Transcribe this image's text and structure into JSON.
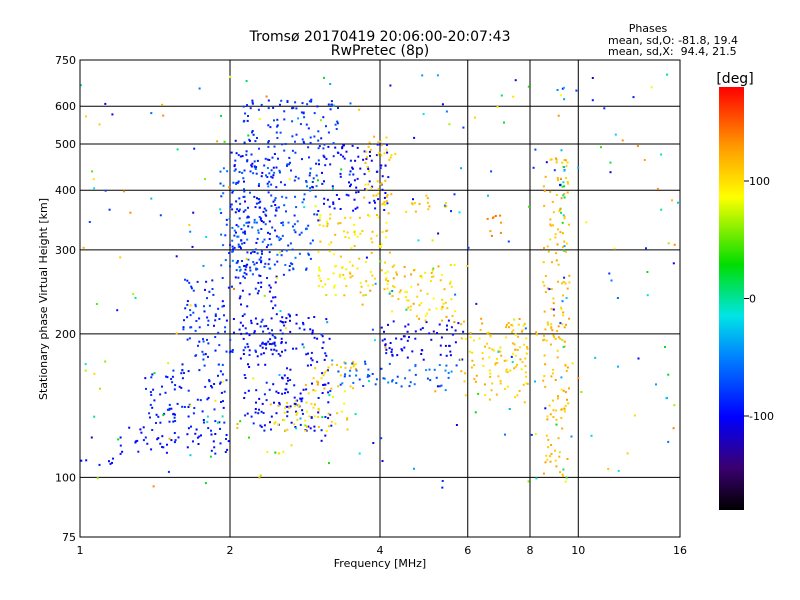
{
  "chart_data": {
    "type": "scatter",
    "title": "Tromsø 20170419 20:06:00-20:07:43",
    "subtitle": "RwPretec (8p)",
    "xlabel": "Frequency [MHz]",
    "ylabel": "Stationary phase Virtual Height [km]",
    "x_scale": "log",
    "y_scale": "log",
    "xlim": [
      1,
      16
    ],
    "ylim": [
      75,
      750
    ],
    "x_ticks": [
      1,
      2,
      4,
      6,
      8,
      10,
      16
    ],
    "y_ticks": [
      75,
      100,
      200,
      300,
      400,
      500,
      600,
      750
    ],
    "grid": true,
    "color_scale": {
      "label": "[deg]",
      "ticks": [
        100,
        0,
        -100
      ],
      "range": [
        -180,
        180
      ],
      "colormap": "rainbow"
    },
    "phases_box": {
      "heading": "Phases",
      "line_o": "mean, sd,O: -81.8, 19.4",
      "line_x": "mean, sd,X:  94.4, 21.5"
    },
    "clusters": [
      {
        "x": [
          1.0,
          1.2
        ],
        "y": [
          106,
          111
        ],
        "phase": [
          -100,
          -90
        ]
      },
      {
        "x": [
          1.2,
          2.0
        ],
        "y": [
          112,
          128
        ],
        "phase": [
          -105,
          -85
        ]
      },
      {
        "x": [
          1.35,
          2.0
        ],
        "y": [
          130,
          170
        ],
        "phase": [
          -100,
          -80
        ]
      },
      {
        "x": [
          1.6,
          2.0
        ],
        "y": [
          170,
          260
        ],
        "phase": [
          -100,
          -70
        ]
      },
      {
        "x": [
          1.9,
          3.0
        ],
        "y": [
          260,
          450
        ],
        "phase": [
          -90,
          -50
        ]
      },
      {
        "x": [
          2.1,
          3.3
        ],
        "y": [
          450,
          620
        ],
        "phase": [
          -95,
          -70
        ]
      },
      {
        "x": [
          2.0,
          2.5
        ],
        "y": [
          180,
          480
        ],
        "phase": [
          -110,
          -80
        ]
      },
      {
        "x": [
          2.1,
          3.2
        ],
        "y": [
          125,
          220
        ],
        "phase": [
          -110,
          -85
        ]
      },
      {
        "x": [
          2.35,
          2.6
        ],
        "y": [
          112,
          118
        ],
        "phase": [
          90,
          115
        ]
      },
      {
        "x": [
          2.4,
          3.5
        ],
        "y": [
          125,
          145
        ],
        "phase": [
          80,
          120
        ]
      },
      {
        "x": [
          2.8,
          3.6
        ],
        "y": [
          150,
          175
        ],
        "phase": [
          90,
          130
        ]
      },
      {
        "x": [
          3.0,
          4.2
        ],
        "y": [
          240,
          360
        ],
        "phase": [
          80,
          120
        ]
      },
      {
        "x": [
          3.0,
          4.2
        ],
        "y": [
          360,
          500
        ],
        "phase": [
          -110,
          -90
        ]
      },
      {
        "x": [
          3.7,
          4.3
        ],
        "y": [
          370,
          520
        ],
        "phase": [
          95,
          120
        ]
      },
      {
        "x": [
          3.3,
          5.8
        ],
        "y": [
          155,
          175
        ],
        "phase": [
          -80,
          -40
        ]
      },
      {
        "x": [
          4.0,
          5.9
        ],
        "y": [
          175,
          215
        ],
        "phase": [
          -115,
          -90
        ]
      },
      {
        "x": [
          4.2,
          5.7
        ],
        "y": [
          210,
          280
        ],
        "phase": [
          85,
          130
        ]
      },
      {
        "x": [
          4.5,
          5.5
        ],
        "y": [
          360,
          390
        ],
        "phase": [
          100,
          125
        ]
      },
      {
        "x": [
          5.8,
          8.0
        ],
        "y": [
          145,
          215
        ],
        "phase": [
          90,
          130
        ]
      },
      {
        "x": [
          6.4,
          7.0
        ],
        "y": [
          320,
          360
        ],
        "phase": [
          125,
          145
        ]
      },
      {
        "x": [
          7.3,
          9.0
        ],
        "y": [
          195,
          210
        ],
        "phase": [
          95,
          130
        ]
      },
      {
        "x": [
          9.2,
          9.4
        ],
        "y": [
          100,
          670
        ],
        "phase": [
          -90,
          120
        ]
      },
      {
        "x": [
          8.5,
          9.6
        ],
        "y": [
          100,
          480
        ],
        "phase": [
          100,
          130
        ]
      },
      {
        "x": [
          1.0,
          16.0
        ],
        "y": [
          95,
          700
        ],
        "phase": [
          -120,
          140
        ]
      }
    ]
  }
}
